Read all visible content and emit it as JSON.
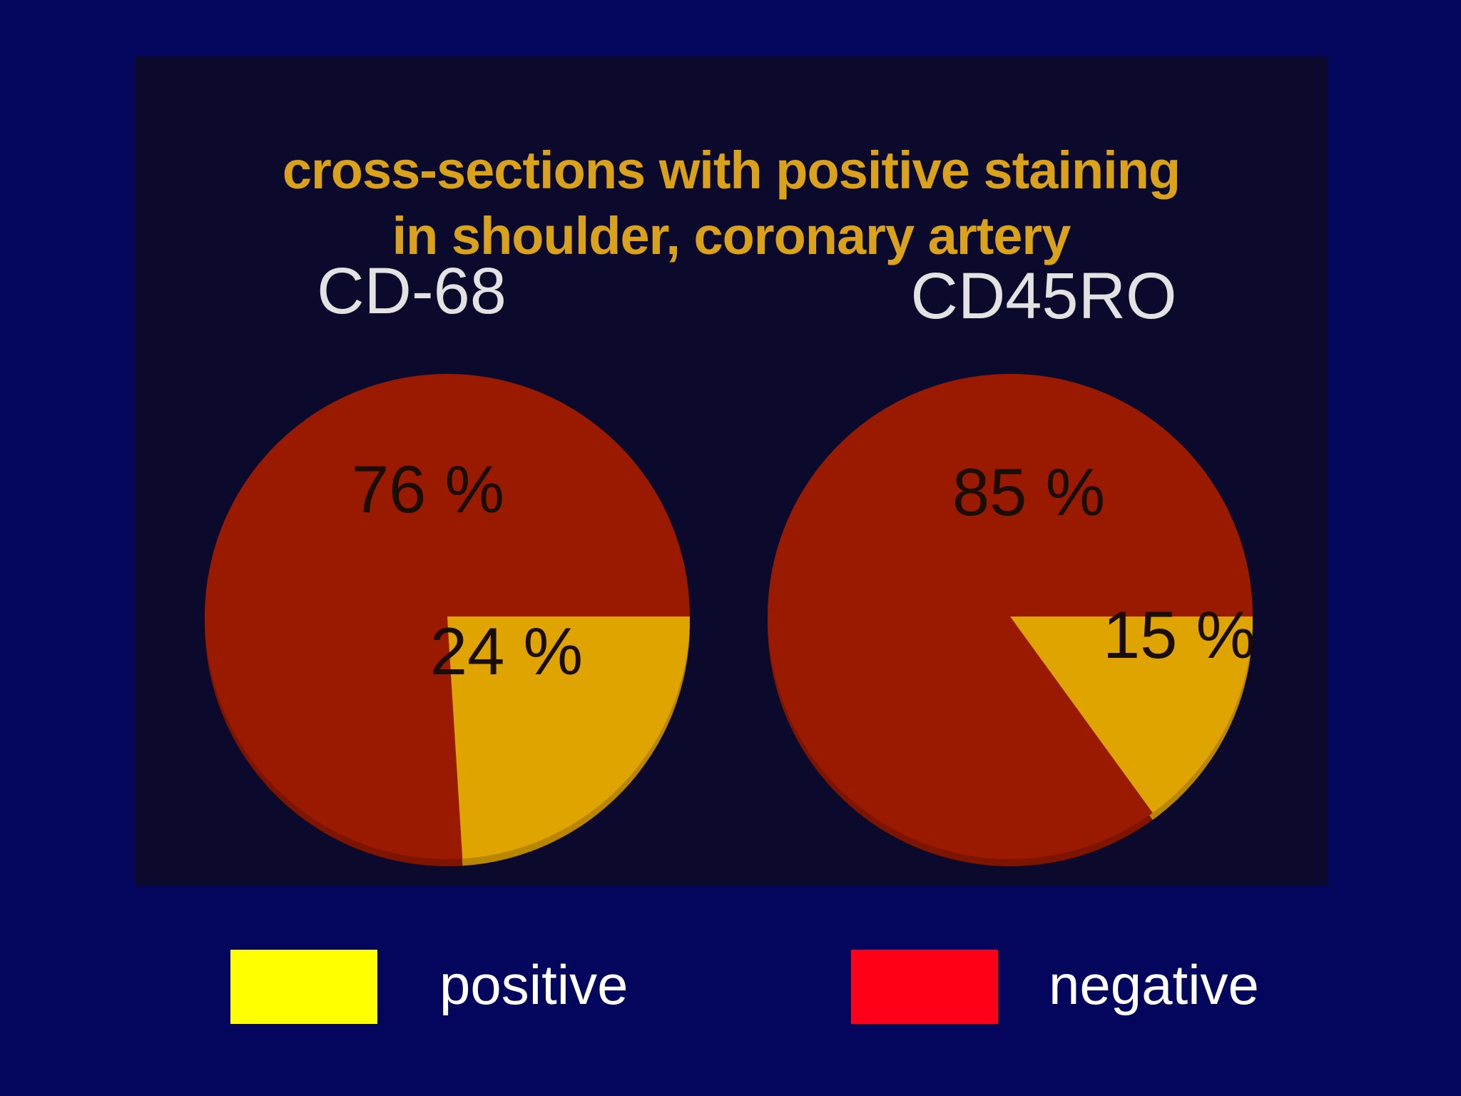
{
  "title_lines": [
    "cross-sections with positive staining",
    "in shoulder, coronary artery"
  ],
  "colors": {
    "background": "#03065c",
    "panel": "#0b0a2c",
    "negative_slice": "#9a1a00",
    "negative_slice_shadow": "#7d1400",
    "positive_slice": "#e0a400",
    "positive_slice_shadow": "#b98600",
    "legend_positive": "#ffff00",
    "legend_negative": "#ff0018"
  },
  "chart_data": [
    {
      "type": "pie",
      "title": "CD-68",
      "slices": [
        {
          "label": "negative",
          "value": 76,
          "text": "76 %"
        },
        {
          "label": "positive",
          "value": 24,
          "text": "24 %"
        }
      ]
    },
    {
      "type": "pie",
      "title": "CD45RO",
      "slices": [
        {
          "label": "negative",
          "value": 85,
          "text": "85 %"
        },
        {
          "label": "positive",
          "value": 15,
          "text": "15 %"
        }
      ]
    }
  ],
  "legend": [
    {
      "label": "positive",
      "color": "#ffff00"
    },
    {
      "label": "negative",
      "color": "#ff0018"
    }
  ]
}
